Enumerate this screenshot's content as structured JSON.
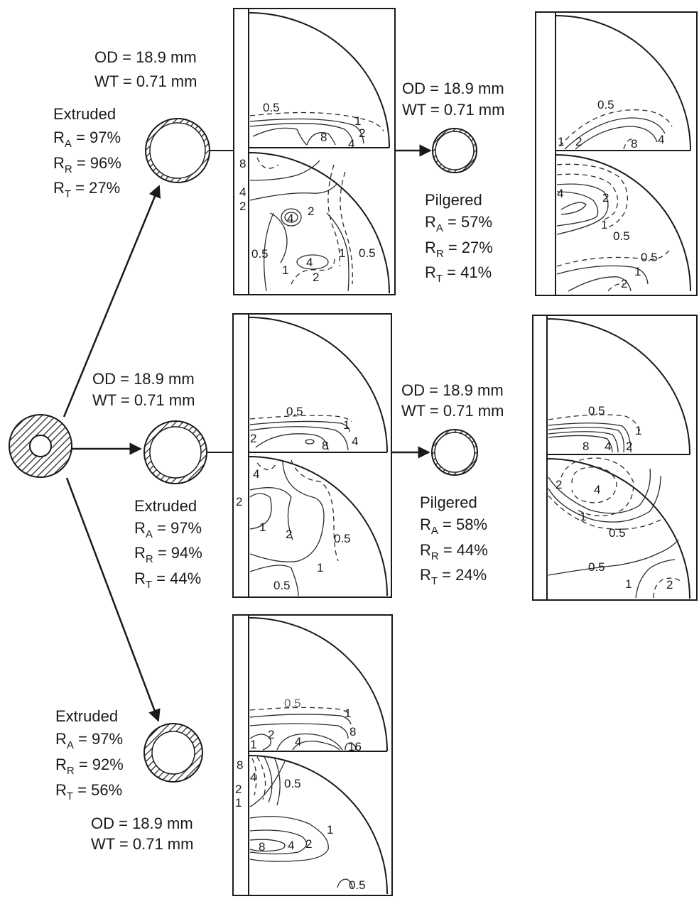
{
  "billet": {
    "icon": "hatched-billet-cross-section"
  },
  "routes": [
    {
      "extruded": {
        "od": "OD = 18.9 mm",
        "wt": "WT = 0.71 mm",
        "state": "Extruded",
        "ra": {
          "sym": "R",
          "sub": "A",
          "val": " = 97%"
        },
        "rr": {
          "sym": "R",
          "sub": "R",
          "val": " = 96%"
        },
        "rt": {
          "sym": "R",
          "sub": "T",
          "val": " = 27%"
        }
      },
      "extruded_pf": {
        "top": [
          "0.5",
          "1",
          "2",
          "8",
          "4"
        ],
        "bottom": [
          "8",
          "4",
          "2",
          "4",
          "2",
          "0.5",
          "1",
          "4",
          "2",
          "1",
          "0.5"
        ]
      },
      "pilgered": {
        "od": "OD = 18.9 mm",
        "wt": "WT = 0.71 mm",
        "state": "Pilgered",
        "ra": {
          "sym": "R",
          "sub": "A",
          "val": " = 57%"
        },
        "rr": {
          "sym": "R",
          "sub": "R",
          "val": " = 27%"
        },
        "rt": {
          "sym": "R",
          "sub": "T",
          "val": " = 41%"
        }
      },
      "pilgered_pf": {
        "top": [
          "0.5",
          "1",
          "2",
          "8",
          "4"
        ],
        "bottom": [
          "4",
          "2",
          "1",
          "0.5",
          "0.5",
          "1",
          "2"
        ]
      }
    },
    {
      "extruded": {
        "od": "OD = 18.9 mm",
        "wt": "WT = 0.71 mm",
        "state": "Extruded",
        "ra": {
          "sym": "R",
          "sub": "A",
          "val": " = 97%"
        },
        "rr": {
          "sym": "R",
          "sub": "R",
          "val": " = 94%"
        },
        "rt": {
          "sym": "R",
          "sub": "T",
          "val": " = 44%"
        }
      },
      "extruded_pf": {
        "top": [
          "0.5",
          "1",
          "2",
          "8",
          "4"
        ],
        "bottom": [
          "4",
          "2",
          "1",
          "2",
          "0.5",
          "1",
          "0.5"
        ]
      },
      "pilgered": {
        "od": "OD = 18.9 mm",
        "wt": "WT = 0.71 mm",
        "state": "Pilgered",
        "ra": {
          "sym": "R",
          "sub": "A",
          "val": " = 58%"
        },
        "rr": {
          "sym": "R",
          "sub": "R",
          "val": " = 44%"
        },
        "rt": {
          "sym": "R",
          "sub": "T",
          "val": " = 24%"
        }
      },
      "pilgered_pf": {
        "top": [
          "0.5",
          "1",
          "8",
          "4",
          "2"
        ],
        "bottom": [
          "2",
          "4",
          "1",
          "0.5",
          "0.5",
          "1",
          "2"
        ]
      }
    },
    {
      "extruded": {
        "od": "OD = 18.9 mm",
        "wt": "WT = 0.71 mm",
        "state": "Extruded",
        "ra": {
          "sym": "R",
          "sub": "A",
          "val": " = 97%"
        },
        "rr": {
          "sym": "R",
          "sub": "R",
          "val": " = 92%"
        },
        "rt": {
          "sym": "R",
          "sub": "T",
          "val": " = 56%"
        }
      },
      "extruded_pf": {
        "top": [
          "0.5",
          "1",
          "1",
          "2",
          "4",
          "8",
          "16"
        ],
        "bottom": [
          "8",
          "4",
          "0.5",
          "2",
          "1",
          "8",
          "4",
          "2",
          "1",
          "0.5"
        ]
      }
    }
  ]
}
